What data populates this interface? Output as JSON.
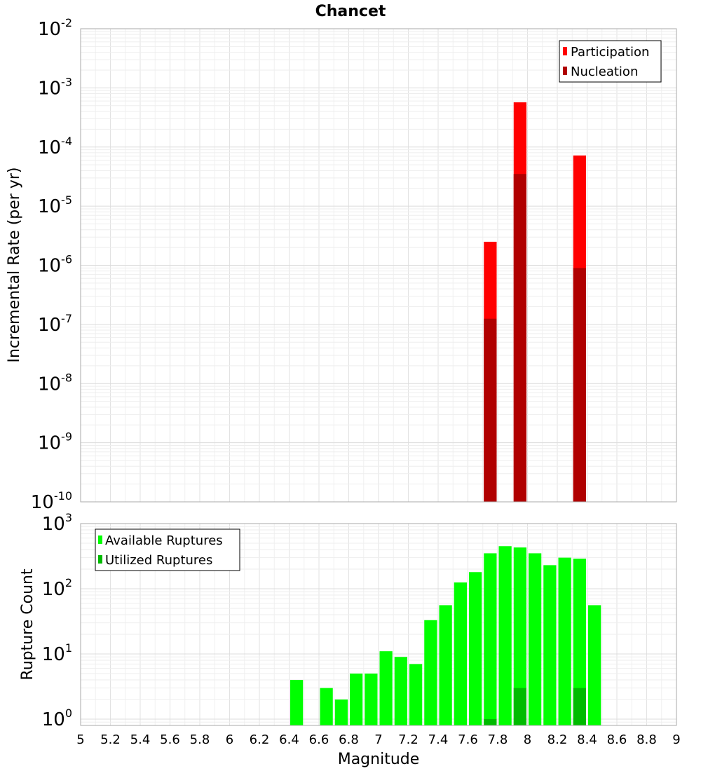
{
  "title": "Chancet",
  "chart_data": [
    {
      "type": "bar",
      "ylabel": "Incremental Rate (per yr)",
      "yscale": "log",
      "ylim": [
        1e-10,
        0.01
      ],
      "xlim": [
        5,
        9
      ],
      "bin_width": 0.1,
      "grid": true,
      "legend_position": "top-right",
      "y_ticks": [
        {
          "base": "10",
          "exp": "-10"
        },
        {
          "base": "10",
          "exp": "-9"
        },
        {
          "base": "10",
          "exp": "-8"
        },
        {
          "base": "10",
          "exp": "-7"
        },
        {
          "base": "10",
          "exp": "-6"
        },
        {
          "base": "10",
          "exp": "-5"
        },
        {
          "base": "10",
          "exp": "-4"
        },
        {
          "base": "10",
          "exp": "-3"
        },
        {
          "base": "10",
          "exp": "-2"
        }
      ],
      "series": [
        {
          "name": "Participation",
          "color": "#ff0000",
          "x": [
            7.75,
            7.95,
            8.35
          ],
          "values": [
            2.5e-06,
            0.00057,
            7.2e-05
          ]
        },
        {
          "name": "Nucleation",
          "color": "#b00000",
          "x": [
            7.75,
            7.95,
            8.35
          ],
          "values": [
            1.25e-07,
            3.5e-05,
            9e-07
          ]
        }
      ]
    },
    {
      "type": "bar",
      "xlabel": "Magnitude",
      "ylabel": "Rupture Count",
      "yscale": "log",
      "ylim": [
        0.8,
        1000
      ],
      "xlim": [
        5,
        9
      ],
      "bin_width": 0.1,
      "grid": true,
      "legend_position": "top-left",
      "x_ticks": [
        "5",
        "5.2",
        "5.4",
        "5.6",
        "5.8",
        "6",
        "6.2",
        "6.4",
        "6.6",
        "6.8",
        "7",
        "7.2",
        "7.4",
        "7.6",
        "7.8",
        "8",
        "8.2",
        "8.4",
        "8.6",
        "8.8",
        "9"
      ],
      "y_ticks": [
        {
          "base": "10",
          "exp": "0"
        },
        {
          "base": "10",
          "exp": "1"
        },
        {
          "base": "10",
          "exp": "2"
        },
        {
          "base": "10",
          "exp": "3"
        }
      ],
      "series": [
        {
          "name": "Available Ruptures",
          "color": "#00ff00",
          "x": [
            6.45,
            6.65,
            6.75,
            6.85,
            6.95,
            7.05,
            7.15,
            7.25,
            7.35,
            7.45,
            7.55,
            7.65,
            7.75,
            7.85,
            7.95,
            8.05,
            8.15,
            8.25,
            8.35,
            8.45
          ],
          "values": [
            4,
            3,
            2,
            5,
            5,
            11,
            9,
            7,
            33,
            56,
            125,
            180,
            350,
            450,
            430,
            350,
            230,
            300,
            290,
            56
          ]
        },
        {
          "name": "Utilized Ruptures",
          "color": "#00bb00",
          "x": [
            7.75,
            7.95,
            8.35
          ],
          "values": [
            1,
            3,
            3
          ]
        }
      ]
    }
  ]
}
